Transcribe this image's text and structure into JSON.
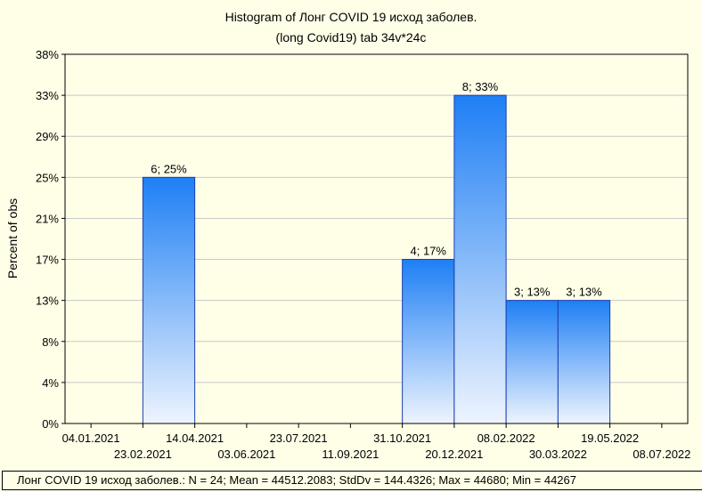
{
  "chart_data": {
    "type": "bar",
    "title": "Histogram of Лонг COVID 19 исход заболев.",
    "subtitle": "(long Covid19) tab 34v*24c",
    "ylabel": "Percent of obs",
    "yticks": [
      "0%",
      "4%",
      "8%",
      "13%",
      "17%",
      "21%",
      "25%",
      "29%",
      "33%",
      "38%"
    ],
    "ylim": [
      0,
      37.5
    ],
    "xticks_top_row": [
      "04.01.2021",
      "14.04.2021",
      "23.07.2021",
      "31.10.2021",
      "08.02.2022",
      "19.05.2022"
    ],
    "xticks_bottom_row": [
      "23.02.2021",
      "03.06.2021",
      "11.09.2021",
      "20.12.2021",
      "30.03.2022",
      "08.07.2022"
    ],
    "bins": [
      "04.01.2021–23.02.2021",
      "23.02.2021–14.04.2021",
      "14.04.2021–03.06.2021",
      "03.06.2021–23.07.2021",
      "23.07.2021–11.09.2021",
      "11.09.2021–31.10.2021",
      "31.10.2021–20.12.2021",
      "20.12.2021–08.02.2022",
      "08.02.2022–30.03.2022",
      "30.03.2022–19.05.2022",
      "19.05.2022–08.07.2022"
    ],
    "counts": [
      0,
      6,
      0,
      0,
      0,
      0,
      4,
      8,
      3,
      3,
      0
    ],
    "percents": [
      0,
      25,
      0,
      0,
      0,
      0,
      16.67,
      33.33,
      12.5,
      12.5,
      0
    ],
    "data_labels": [
      "",
      "6; 25%",
      "",
      "",
      "",
      "",
      "4; 17%",
      "8; 33%",
      "3; 13%",
      "3; 13%",
      ""
    ],
    "grid": true,
    "colors": {
      "bar_top": "#1e7ff5",
      "bar_bottom": "#eef4fe",
      "bar_border": "#1a3fb0",
      "grid": "#c8c8c8",
      "background": "#ffffe8"
    }
  },
  "footer": {
    "text": "Лонг COVID 19 исход заболев.:   N = 24; Mean = 44512.2083; StdDv = 144.4326; Max = 44680; Min = 44267"
  }
}
